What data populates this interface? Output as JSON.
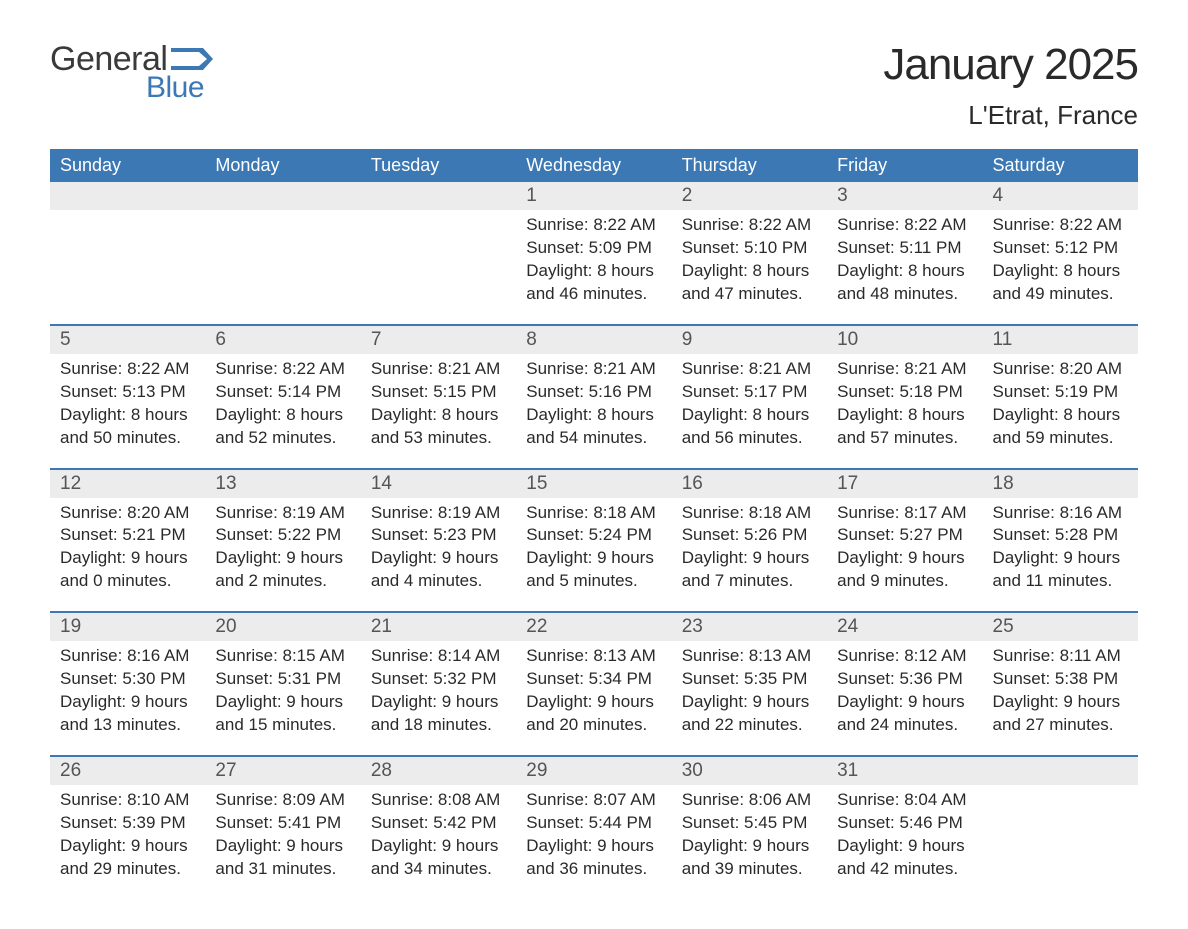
{
  "brand": {
    "general": "General",
    "blue": "Blue",
    "flag_color": "#3c78b4"
  },
  "title": "January 2025",
  "subtitle": "L'Etrat, France",
  "colors": {
    "header_bg": "#3c78b4",
    "header_text": "#ffffff",
    "daynum_bg": "#ececec",
    "border": "#3c78b4",
    "text": "#2a2a2a",
    "muted": "#555555",
    "page_bg": "#ffffff"
  },
  "fonts": {
    "base_family": "Arial",
    "title_size_pt": 33,
    "subtitle_size_pt": 20,
    "header_size_pt": 14,
    "body_size_pt": 13
  },
  "day_labels": [
    "Sunday",
    "Monday",
    "Tuesday",
    "Wednesday",
    "Thursday",
    "Friday",
    "Saturday"
  ],
  "weeks": [
    [
      null,
      null,
      null,
      {
        "n": "1",
        "sunrise": "Sunrise: 8:22 AM",
        "sunset": "Sunset: 5:09 PM",
        "d1": "Daylight: 8 hours",
        "d2": "and 46 minutes."
      },
      {
        "n": "2",
        "sunrise": "Sunrise: 8:22 AM",
        "sunset": "Sunset: 5:10 PM",
        "d1": "Daylight: 8 hours",
        "d2": "and 47 minutes."
      },
      {
        "n": "3",
        "sunrise": "Sunrise: 8:22 AM",
        "sunset": "Sunset: 5:11 PM",
        "d1": "Daylight: 8 hours",
        "d2": "and 48 minutes."
      },
      {
        "n": "4",
        "sunrise": "Sunrise: 8:22 AM",
        "sunset": "Sunset: 5:12 PM",
        "d1": "Daylight: 8 hours",
        "d2": "and 49 minutes."
      }
    ],
    [
      {
        "n": "5",
        "sunrise": "Sunrise: 8:22 AM",
        "sunset": "Sunset: 5:13 PM",
        "d1": "Daylight: 8 hours",
        "d2": "and 50 minutes."
      },
      {
        "n": "6",
        "sunrise": "Sunrise: 8:22 AM",
        "sunset": "Sunset: 5:14 PM",
        "d1": "Daylight: 8 hours",
        "d2": "and 52 minutes."
      },
      {
        "n": "7",
        "sunrise": "Sunrise: 8:21 AM",
        "sunset": "Sunset: 5:15 PM",
        "d1": "Daylight: 8 hours",
        "d2": "and 53 minutes."
      },
      {
        "n": "8",
        "sunrise": "Sunrise: 8:21 AM",
        "sunset": "Sunset: 5:16 PM",
        "d1": "Daylight: 8 hours",
        "d2": "and 54 minutes."
      },
      {
        "n": "9",
        "sunrise": "Sunrise: 8:21 AM",
        "sunset": "Sunset: 5:17 PM",
        "d1": "Daylight: 8 hours",
        "d2": "and 56 minutes."
      },
      {
        "n": "10",
        "sunrise": "Sunrise: 8:21 AM",
        "sunset": "Sunset: 5:18 PM",
        "d1": "Daylight: 8 hours",
        "d2": "and 57 minutes."
      },
      {
        "n": "11",
        "sunrise": "Sunrise: 8:20 AM",
        "sunset": "Sunset: 5:19 PM",
        "d1": "Daylight: 8 hours",
        "d2": "and 59 minutes."
      }
    ],
    [
      {
        "n": "12",
        "sunrise": "Sunrise: 8:20 AM",
        "sunset": "Sunset: 5:21 PM",
        "d1": "Daylight: 9 hours",
        "d2": "and 0 minutes."
      },
      {
        "n": "13",
        "sunrise": "Sunrise: 8:19 AM",
        "sunset": "Sunset: 5:22 PM",
        "d1": "Daylight: 9 hours",
        "d2": "and 2 minutes."
      },
      {
        "n": "14",
        "sunrise": "Sunrise: 8:19 AM",
        "sunset": "Sunset: 5:23 PM",
        "d1": "Daylight: 9 hours",
        "d2": "and 4 minutes."
      },
      {
        "n": "15",
        "sunrise": "Sunrise: 8:18 AM",
        "sunset": "Sunset: 5:24 PM",
        "d1": "Daylight: 9 hours",
        "d2": "and 5 minutes."
      },
      {
        "n": "16",
        "sunrise": "Sunrise: 8:18 AM",
        "sunset": "Sunset: 5:26 PM",
        "d1": "Daylight: 9 hours",
        "d2": "and 7 minutes."
      },
      {
        "n": "17",
        "sunrise": "Sunrise: 8:17 AM",
        "sunset": "Sunset: 5:27 PM",
        "d1": "Daylight: 9 hours",
        "d2": "and 9 minutes."
      },
      {
        "n": "18",
        "sunrise": "Sunrise: 8:16 AM",
        "sunset": "Sunset: 5:28 PM",
        "d1": "Daylight: 9 hours",
        "d2": "and 11 minutes."
      }
    ],
    [
      {
        "n": "19",
        "sunrise": "Sunrise: 8:16 AM",
        "sunset": "Sunset: 5:30 PM",
        "d1": "Daylight: 9 hours",
        "d2": "and 13 minutes."
      },
      {
        "n": "20",
        "sunrise": "Sunrise: 8:15 AM",
        "sunset": "Sunset: 5:31 PM",
        "d1": "Daylight: 9 hours",
        "d2": "and 15 minutes."
      },
      {
        "n": "21",
        "sunrise": "Sunrise: 8:14 AM",
        "sunset": "Sunset: 5:32 PM",
        "d1": "Daylight: 9 hours",
        "d2": "and 18 minutes."
      },
      {
        "n": "22",
        "sunrise": "Sunrise: 8:13 AM",
        "sunset": "Sunset: 5:34 PM",
        "d1": "Daylight: 9 hours",
        "d2": "and 20 minutes."
      },
      {
        "n": "23",
        "sunrise": "Sunrise: 8:13 AM",
        "sunset": "Sunset: 5:35 PM",
        "d1": "Daylight: 9 hours",
        "d2": "and 22 minutes."
      },
      {
        "n": "24",
        "sunrise": "Sunrise: 8:12 AM",
        "sunset": "Sunset: 5:36 PM",
        "d1": "Daylight: 9 hours",
        "d2": "and 24 minutes."
      },
      {
        "n": "25",
        "sunrise": "Sunrise: 8:11 AM",
        "sunset": "Sunset: 5:38 PM",
        "d1": "Daylight: 9 hours",
        "d2": "and 27 minutes."
      }
    ],
    [
      {
        "n": "26",
        "sunrise": "Sunrise: 8:10 AM",
        "sunset": "Sunset: 5:39 PM",
        "d1": "Daylight: 9 hours",
        "d2": "and 29 minutes."
      },
      {
        "n": "27",
        "sunrise": "Sunrise: 8:09 AM",
        "sunset": "Sunset: 5:41 PM",
        "d1": "Daylight: 9 hours",
        "d2": "and 31 minutes."
      },
      {
        "n": "28",
        "sunrise": "Sunrise: 8:08 AM",
        "sunset": "Sunset: 5:42 PM",
        "d1": "Daylight: 9 hours",
        "d2": "and 34 minutes."
      },
      {
        "n": "29",
        "sunrise": "Sunrise: 8:07 AM",
        "sunset": "Sunset: 5:44 PM",
        "d1": "Daylight: 9 hours",
        "d2": "and 36 minutes."
      },
      {
        "n": "30",
        "sunrise": "Sunrise: 8:06 AM",
        "sunset": "Sunset: 5:45 PM",
        "d1": "Daylight: 9 hours",
        "d2": "and 39 minutes."
      },
      {
        "n": "31",
        "sunrise": "Sunrise: 8:04 AM",
        "sunset": "Sunset: 5:46 PM",
        "d1": "Daylight: 9 hours",
        "d2": "and 42 minutes."
      },
      null
    ]
  ]
}
